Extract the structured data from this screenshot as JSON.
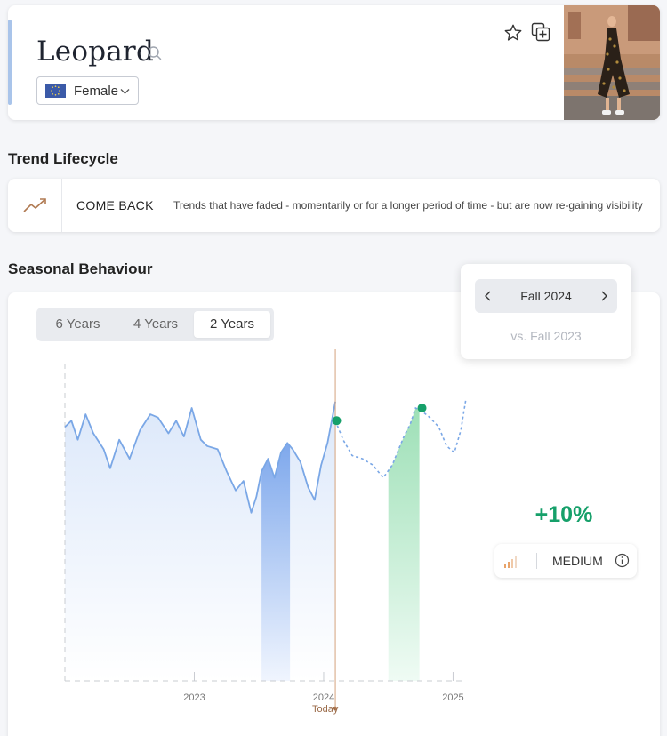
{
  "header": {
    "title": "Leopard",
    "gender_select": {
      "selected": "Female"
    },
    "colors": {
      "accent": "#a9c4ea"
    }
  },
  "lifecycle": {
    "heading": "Trend Lifecycle",
    "stage": "COME BACK",
    "description": "Trends that have faded - momentarily or for a longer period of time - but are now re-gaining visibility",
    "icon": "trend-up-icon"
  },
  "seasonal": {
    "heading": "Seasonal Behaviour",
    "tabs": [
      {
        "label": "6 Years",
        "active": false
      },
      {
        "label": "4 Years",
        "active": false
      },
      {
        "label": "2 Years",
        "active": true
      }
    ],
    "season_selector": {
      "current": "Fall 2024",
      "compare": "vs. Fall 2023"
    },
    "growth": "+10%",
    "strength": "MEDIUM",
    "colors": {
      "positive": "#16a06a",
      "history": "#7aa7e6",
      "forecast": "#7aa7e6"
    }
  },
  "chart_data": {
    "type": "line",
    "x_ticks": [
      "2023",
      "2024",
      "2025"
    ],
    "today_label": "Today",
    "today_x": 2024.09,
    "x_range": [
      2022.0,
      2025.1
    ],
    "y_range": [
      0,
      100
    ],
    "history": [
      [
        2022.0,
        80
      ],
      [
        2022.05,
        82
      ],
      [
        2022.1,
        76
      ],
      [
        2022.16,
        84
      ],
      [
        2022.22,
        78
      ],
      [
        2022.3,
        73
      ],
      [
        2022.35,
        67
      ],
      [
        2022.42,
        76
      ],
      [
        2022.5,
        70
      ],
      [
        2022.58,
        79
      ],
      [
        2022.66,
        84
      ],
      [
        2022.72,
        83
      ],
      [
        2022.8,
        78
      ],
      [
        2022.86,
        82
      ],
      [
        2022.92,
        77
      ],
      [
        2022.98,
        86
      ],
      [
        2023.05,
        76
      ],
      [
        2023.1,
        74
      ],
      [
        2023.18,
        73
      ],
      [
        2023.25,
        66
      ],
      [
        2023.32,
        60
      ],
      [
        2023.38,
        63
      ],
      [
        2023.44,
        53
      ],
      [
        2023.48,
        58
      ],
      [
        2023.52,
        66
      ],
      [
        2023.57,
        70
      ],
      [
        2023.62,
        64
      ],
      [
        2023.67,
        72
      ],
      [
        2023.72,
        75
      ],
      [
        2023.76,
        73
      ],
      [
        2023.82,
        69
      ],
      [
        2023.88,
        61
      ],
      [
        2023.93,
        57
      ],
      [
        2023.98,
        68
      ],
      [
        2024.03,
        75
      ],
      [
        2024.09,
        88
      ]
    ],
    "forecast": [
      [
        2024.09,
        82
      ],
      [
        2024.15,
        76
      ],
      [
        2024.22,
        71
      ],
      [
        2024.3,
        70
      ],
      [
        2024.38,
        68
      ],
      [
        2024.46,
        64
      ],
      [
        2024.53,
        68
      ],
      [
        2024.58,
        73
      ],
      [
        2024.62,
        77
      ],
      [
        2024.67,
        81
      ],
      [
        2024.71,
        86
      ],
      [
        2024.76,
        85
      ],
      [
        2024.82,
        83
      ],
      [
        2024.89,
        80
      ],
      [
        2024.95,
        74
      ],
      [
        2025.01,
        72
      ],
      [
        2025.06,
        79
      ],
      [
        2025.1,
        89
      ]
    ],
    "highlight_last_year": [
      2023.52,
      2023.74
    ],
    "highlight_this_year": [
      2024.5,
      2024.74
    ],
    "markers": [
      [
        2024.1,
        82
      ],
      [
        2024.76,
        86
      ]
    ]
  }
}
